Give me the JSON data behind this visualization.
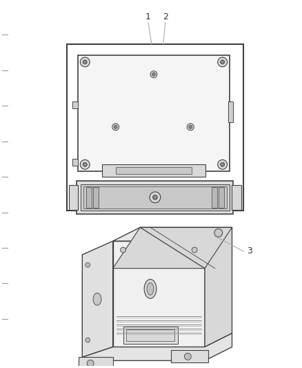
{
  "background_color": "#ffffff",
  "line_color": "#404040",
  "light_gray": "#e8e8e8",
  "mid_gray": "#aaaaaa",
  "dark_gray": "#333333",
  "fig_width": 4.38,
  "fig_height": 5.33,
  "dpi": 100
}
